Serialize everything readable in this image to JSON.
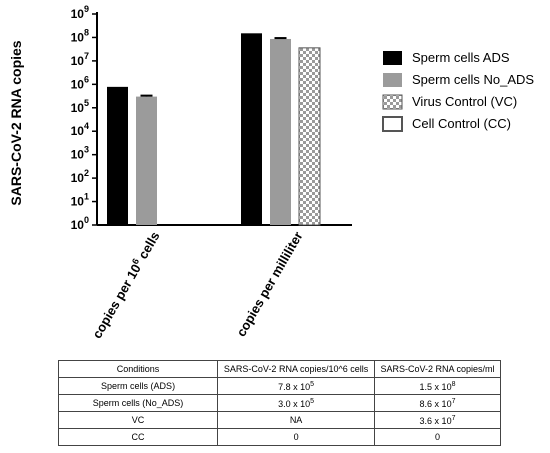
{
  "chart_data": {
    "type": "bar",
    "ylabel": "SARS-CoV-2 RNA copies",
    "y_scale": "log",
    "ylim": [
      1,
      1000000000
    ],
    "y_ticks": [
      {
        "value": 1,
        "base": "10",
        "exp": "0"
      },
      {
        "value": 10,
        "base": "10",
        "exp": "1"
      },
      {
        "value": 100,
        "base": "10",
        "exp": "2"
      },
      {
        "value": 1000,
        "base": "10",
        "exp": "3"
      },
      {
        "value": 10000,
        "base": "10",
        "exp": "4"
      },
      {
        "value": 100000,
        "base": "10",
        "exp": "5"
      },
      {
        "value": 1000000,
        "base": "10",
        "exp": "6"
      },
      {
        "value": 10000000,
        "base": "10",
        "exp": "7"
      },
      {
        "value": 100000000,
        "base": "10",
        "exp": "8"
      },
      {
        "value": 1000000000,
        "base": "10",
        "exp": "9"
      }
    ],
    "categories": [
      {
        "label_pre": "copies per 10",
        "label_sup": "6",
        "label_post": " cells"
      },
      {
        "label_pre": "copies per milliliter",
        "label_sup": "",
        "label_post": ""
      }
    ],
    "series": [
      {
        "name": "Sperm cells ADS",
        "fill": "#000000",
        "pattern": "solid",
        "values": [
          780000,
          150000000
        ],
        "errors": [
          0,
          0
        ]
      },
      {
        "name": "Sperm cells No_ADS",
        "fill": "#9b9b9b",
        "pattern": "solid",
        "values": [
          300000,
          86000000
        ],
        "errors": [
          30000,
          8000000
        ]
      },
      {
        "name": "Virus Control (VC)",
        "fill": "#ffffff",
        "pattern": "checker",
        "values": [
          null,
          36000000
        ],
        "errors": [
          0,
          0
        ]
      },
      {
        "name": "Cell Control (CC)",
        "fill": "#ffffff",
        "pattern": "outline",
        "values": [
          null,
          null
        ],
        "errors": [
          0,
          0
        ]
      }
    ],
    "legend_position": "right"
  },
  "table": {
    "headers": [
      "Conditions",
      "SARS-CoV-2 RNA copies/10^6 cells",
      "SARS-CoV-2 RNA copies/ml"
    ],
    "rows": [
      [
        {
          "text": "Sperm cells (ADS)"
        },
        {
          "base": "7.8 x 10",
          "exp": "5"
        },
        {
          "base": "1.5 x 10",
          "exp": "8"
        }
      ],
      [
        {
          "text": "Sperm cells (No_ADS)"
        },
        {
          "base": "3.0 x 10",
          "exp": "5"
        },
        {
          "base": "8.6 x 10",
          "exp": "7"
        }
      ],
      [
        {
          "text": "VC"
        },
        {
          "text": "NA"
        },
        {
          "base": "3.6 x 10",
          "exp": "7"
        }
      ],
      [
        {
          "text": "CC"
        },
        {
          "text": "0"
        },
        {
          "text": "0"
        }
      ]
    ]
  }
}
